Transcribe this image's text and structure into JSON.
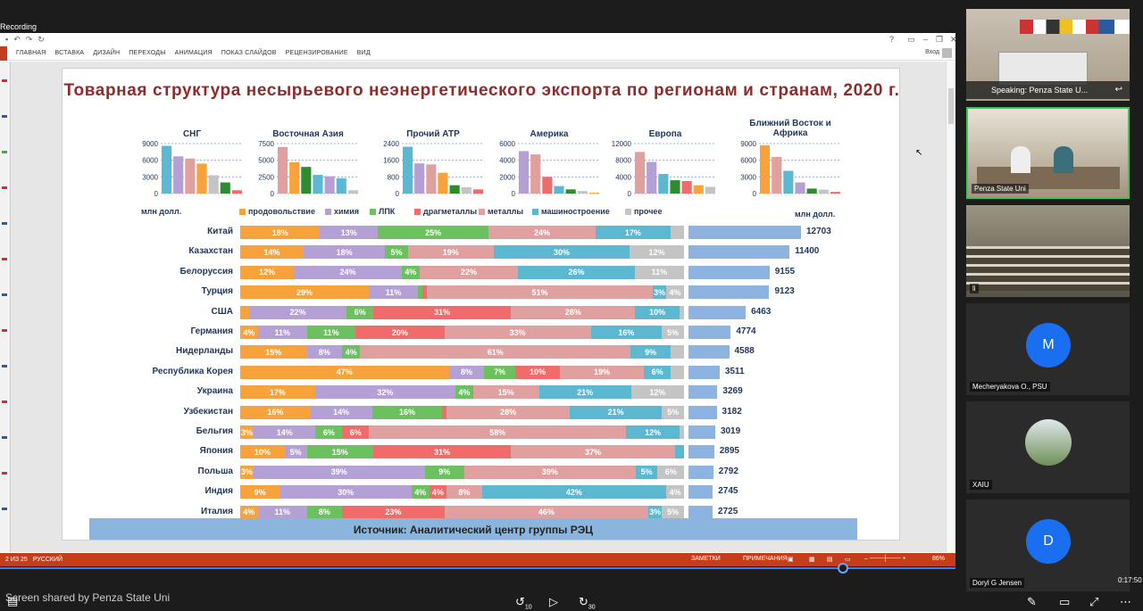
{
  "meeting": {
    "recording_label": "Recording",
    "shared_by": "Screen shared by Penza State Uni",
    "timecode": "0:17:50",
    "rewind_label": "10",
    "forward_label": "30"
  },
  "ppt": {
    "tabs": [
      "ГЛАВНАЯ",
      "ВСТАВКА",
      "ДИЗАЙН",
      "ПЕРЕХОДЫ",
      "АНИМАЦИЯ",
      "ПОКАЗ СЛАЙДОВ",
      "РЕЦЕНЗИРОВАНИЕ",
      "ВИД"
    ],
    "login": "Вход",
    "status_left": "2 ИЗ 25",
    "status_lang": "РУССКИЙ",
    "status_notes": "ЗАМЕТКИ",
    "status_comments": "ПРИМЕЧАНИЯ",
    "zoom": "86%"
  },
  "slide": {
    "title": "Товарная структура несырьевого неэнергетического экспорта по регионам и странам, 2020 г.",
    "unit_left": "млн долл.",
    "unit_right": "млн долл.",
    "source": "Источник: Аналитический центр группы РЭЦ",
    "legend": [
      {
        "name": "продовольствие",
        "color": "#f7a23b"
      },
      {
        "name": "химия",
        "color": "#b4a0d4"
      },
      {
        "name": "ЛПК",
        "color": "#6cc05f"
      },
      {
        "name": "драгметаллы",
        "color": "#f26b6b"
      },
      {
        "name": "металлы",
        "color": "#e0a0a0"
      },
      {
        "name": "машиностроение",
        "color": "#5bb8d0"
      },
      {
        "name": "прочее",
        "color": "#c4c4c4"
      }
    ]
  },
  "chart_data": [
    {
      "type": "bar",
      "title": "СНГ",
      "ylim": [
        0,
        9000
      ],
      "yticks": [
        "9000",
        "6000",
        "3000",
        "0"
      ],
      "values": [
        8600,
        6700,
        6300,
        5400,
        3300,
        2000,
        600
      ],
      "colors": [
        "#5bb8d0",
        "#b4a0d4",
        "#e0a0a0",
        "#f7a23b",
        "#c4c4c4",
        "#2e8b2e",
        "#f26b6b"
      ]
    },
    {
      "type": "bar",
      "title": "Восточная Азия",
      "ylim": [
        0,
        7500
      ],
      "yticks": [
        "7500",
        "5000",
        "2500",
        "0"
      ],
      "values": [
        7000,
        4700,
        4000,
        2800,
        2600,
        2300,
        500
      ],
      "colors": [
        "#e0a0a0",
        "#f7a23b",
        "#2e8b2e",
        "#5bb8d0",
        "#b4a0d4",
        "#5bb8d0",
        "#c4c4c4"
      ]
    },
    {
      "type": "bar",
      "title": "Прочий АТР",
      "ylim": [
        0,
        2400
      ],
      "yticks": [
        "2400",
        "1600",
        "800",
        "0"
      ],
      "values": [
        2250,
        1450,
        1400,
        1000,
        400,
        300,
        200
      ],
      "colors": [
        "#5bb8d0",
        "#b4a0d4",
        "#e0a0a0",
        "#f7a23b",
        "#2e8b2e",
        "#c4c4c4",
        "#f26b6b"
      ]
    },
    {
      "type": "bar",
      "title": "Америка",
      "ylim": [
        0,
        6000
      ],
      "yticks": [
        "6000",
        "4000",
        "2000",
        "0"
      ],
      "values": [
        5100,
        4700,
        2000,
        900,
        500,
        300,
        100
      ],
      "colors": [
        "#b4a0d4",
        "#e0a0a0",
        "#f26b6b",
        "#5bb8d0",
        "#2e8b2e",
        "#c4c4c4",
        "#f7a23b"
      ]
    },
    {
      "type": "bar",
      "title": "Европа",
      "ylim": [
        0,
        12000
      ],
      "yticks": [
        "12000",
        "8000",
        "4000",
        "0"
      ],
      "values": [
        10000,
        7600,
        4700,
        3200,
        3000,
        2000,
        1600
      ],
      "colors": [
        "#e0a0a0",
        "#b4a0d4",
        "#5bb8d0",
        "#2e8b2e",
        "#f26b6b",
        "#f7a23b",
        "#c4c4c4"
      ]
    },
    {
      "type": "bar",
      "title": "Ближний Восток и Африка",
      "ylim": [
        0,
        9000
      ],
      "yticks": [
        "9000",
        "6000",
        "3000",
        "0"
      ],
      "values": [
        8700,
        6600,
        4100,
        2000,
        900,
        700,
        300
      ],
      "colors": [
        "#f7a23b",
        "#e0a0a0",
        "#5bb8d0",
        "#b4a0d4",
        "#2e8b2e",
        "#c4c4c4",
        "#f26b6b"
      ]
    },
    {
      "type": "bar",
      "title": "",
      "stacked_categories": [
        "продовольствие",
        "химия",
        "ЛПК",
        "драгметаллы",
        "металлы",
        "машиностроение",
        "прочее"
      ],
      "rows": [
        {
          "country": "Китай",
          "total": 12703,
          "segments": [
            [
              18,
              "18%"
            ],
            [
              13,
              "13%"
            ],
            [
              25,
              "25%"
            ],
            [
              0,
              ""
            ],
            [
              24,
              "24%"
            ],
            [
              17,
              "17%"
            ],
            [
              3,
              ""
            ]
          ]
        },
        {
          "country": "Казахстан",
          "total": 11400,
          "segments": [
            [
              14,
              "14%"
            ],
            [
              18,
              "18%"
            ],
            [
              5,
              "5%"
            ],
            [
              0,
              ""
            ],
            [
              19,
              "19%"
            ],
            [
              30,
              "30%"
            ],
            [
              12,
              "12%"
            ]
          ]
        },
        {
          "country": "Белоруссия",
          "total": 9155,
          "segments": [
            [
              12,
              "12%"
            ],
            [
              24,
              "24%"
            ],
            [
              4,
              "4%"
            ],
            [
              0,
              ""
            ],
            [
              22,
              "22%"
            ],
            [
              26,
              "26%"
            ],
            [
              11,
              "11%"
            ]
          ]
        },
        {
          "country": "Турция",
          "total": 9123,
          "segments": [
            [
              29,
              "29%"
            ],
            [
              11,
              "11%"
            ],
            [
              1,
              ""
            ],
            [
              1,
              ""
            ],
            [
              51,
              "51%"
            ],
            [
              3,
              "3%"
            ],
            [
              4,
              "4%"
            ]
          ]
        },
        {
          "country": "США",
          "total": 6463,
          "segments": [
            [
              2,
              ""
            ],
            [
              22,
              "22%"
            ],
            [
              6,
              "6%"
            ],
            [
              31,
              "31%"
            ],
            [
              28,
              "28%"
            ],
            [
              10,
              "10%"
            ],
            [
              1,
              ""
            ]
          ]
        },
        {
          "country": "Германия",
          "total": 4774,
          "segments": [
            [
              4,
              "4%"
            ],
            [
              11,
              "11%"
            ],
            [
              11,
              "11%"
            ],
            [
              20,
              "20%"
            ],
            [
              33,
              "33%"
            ],
            [
              16,
              "16%"
            ],
            [
              5,
              "5%"
            ]
          ]
        },
        {
          "country": "Нидерланды",
          "total": 4588,
          "segments": [
            [
              15,
              "15%"
            ],
            [
              8,
              "8%"
            ],
            [
              4,
              "4%"
            ],
            [
              0,
              ""
            ],
            [
              61,
              "61%"
            ],
            [
              9,
              "9%"
            ],
            [
              3,
              ""
            ]
          ]
        },
        {
          "country": "Республика Корея",
          "total": 3511,
          "segments": [
            [
              47,
              "47%"
            ],
            [
              8,
              "8%"
            ],
            [
              7,
              "7%"
            ],
            [
              10,
              "10%"
            ],
            [
              19,
              "19%"
            ],
            [
              6,
              "6%"
            ],
            [
              3,
              ""
            ]
          ]
        },
        {
          "country": "Украина",
          "total": 3269,
          "segments": [
            [
              17,
              "17%"
            ],
            [
              32,
              "32%"
            ],
            [
              4,
              "4%"
            ],
            [
              0,
              ""
            ],
            [
              15,
              "15%"
            ],
            [
              21,
              "21%"
            ],
            [
              12,
              "12%"
            ]
          ]
        },
        {
          "country": "Узбекистан",
          "total": 3182,
          "segments": [
            [
              16,
              "16%"
            ],
            [
              14,
              "14%"
            ],
            [
              16,
              "16%"
            ],
            [
              1,
              ""
            ],
            [
              28,
              "28%"
            ],
            [
              21,
              "21%"
            ],
            [
              5,
              "5%"
            ]
          ]
        },
        {
          "country": "Бельгия",
          "total": 3019,
          "segments": [
            [
              3,
              "3%"
            ],
            [
              14,
              "14%"
            ],
            [
              6,
              "6%"
            ],
            [
              6,
              "6%"
            ],
            [
              58,
              "58%"
            ],
            [
              12,
              "12%"
            ],
            [
              1,
              ""
            ]
          ]
        },
        {
          "country": "Япония",
          "total": 2895,
          "segments": [
            [
              10,
              "10%"
            ],
            [
              5,
              "5%"
            ],
            [
              15,
              "15%"
            ],
            [
              31,
              "31%"
            ],
            [
              37,
              "37%"
            ],
            [
              2,
              ""
            ],
            [
              0,
              ""
            ]
          ]
        },
        {
          "country": "Польша",
          "total": 2792,
          "segments": [
            [
              3,
              "3%"
            ],
            [
              39,
              "39%"
            ],
            [
              9,
              "9%"
            ],
            [
              0,
              ""
            ],
            [
              39,
              "39%"
            ],
            [
              5,
              "5%"
            ],
            [
              6,
              "6%"
            ]
          ]
        },
        {
          "country": "Индия",
          "total": 2745,
          "segments": [
            [
              9,
              "9%"
            ],
            [
              30,
              "30%"
            ],
            [
              4,
              "4%"
            ],
            [
              4,
              "4%"
            ],
            [
              8,
              "8%"
            ],
            [
              42,
              "42%"
            ],
            [
              4,
              "4%"
            ]
          ]
        },
        {
          "country": "Италия",
          "total": 2725,
          "segments": [
            [
              4,
              "4%"
            ],
            [
              11,
              "11%"
            ],
            [
              8,
              "8%"
            ],
            [
              23,
              "23%"
            ],
            [
              46,
              "46%"
            ],
            [
              3,
              "3%"
            ],
            [
              5,
              "5%"
            ]
          ]
        }
      ]
    }
  ],
  "participants": [
    {
      "name": "Speaking: Penza State U...",
      "kind": "video"
    },
    {
      "name": "Penza State Uni",
      "kind": "video"
    },
    {
      "name": "li",
      "kind": "video"
    },
    {
      "name": "Mecheryakova O., PSU",
      "kind": "avatar",
      "initial": "M",
      "color": "#1a6ff0"
    },
    {
      "name": "XAIU",
      "kind": "photo"
    },
    {
      "name": "Doryl G Jensen",
      "kind": "avatar",
      "initial": "D",
      "color": "#1a6ff0"
    }
  ]
}
